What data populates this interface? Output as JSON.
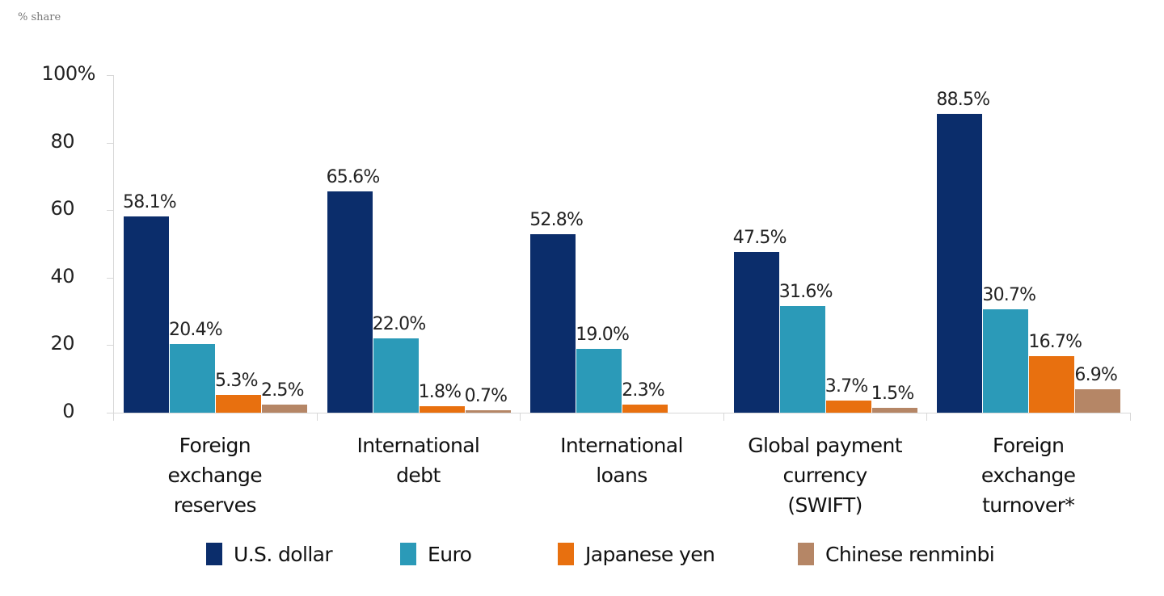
{
  "chart_data": {
    "type": "bar",
    "title": "",
    "unit_label": "% share",
    "xlabel": "",
    "ylabel": "% share",
    "ylim": [
      0,
      100
    ],
    "y_ticks": [
      "0",
      "20",
      "40",
      "60",
      "80",
      "100%"
    ],
    "y_tick_values": [
      0,
      20,
      40,
      60,
      80,
      100
    ],
    "grid": false,
    "legend_position": "bottom",
    "categories": [
      "Foreign exchange reserves",
      "International debt",
      "International loans",
      "Global payment currency (SWIFT)",
      "Foreign exchange turnover*"
    ],
    "category_lines": [
      [
        "Foreign",
        "exchange",
        "reserves"
      ],
      [
        "International",
        "debt"
      ],
      [
        "International",
        "loans"
      ],
      [
        "Global payment",
        "currency",
        "(SWIFT)"
      ],
      [
        "Foreign",
        "exchange",
        "turnover*"
      ]
    ],
    "series": [
      {
        "name": "U.S. dollar",
        "color": "#0b2d6b",
        "values": [
          58.1,
          65.6,
          52.8,
          47.5,
          88.5
        ],
        "labels": [
          "58.1%",
          "65.6%",
          "52.8%",
          "47.5%",
          "88.5%"
        ]
      },
      {
        "name": "Euro",
        "color": "#2b9ab8",
        "values": [
          20.4,
          22.0,
          19.0,
          31.6,
          30.7
        ],
        "labels": [
          "20.4%",
          "22.0%",
          "19.0%",
          "31.6%",
          "30.7%"
        ]
      },
      {
        "name": "Japanese yen",
        "color": "#e8700f",
        "values": [
          5.3,
          1.8,
          2.3,
          3.7,
          16.7
        ],
        "labels": [
          "5.3%",
          "1.8%",
          "2.3%",
          "3.7%",
          "16.7%"
        ]
      },
      {
        "name": "Chinese renminbi",
        "color": "#b58666",
        "values": [
          2.5,
          0.7,
          null,
          1.5,
          6.9
        ],
        "labels": [
          "2.5%",
          "0.7%",
          "",
          "1.5%",
          "6.9%"
        ]
      }
    ]
  }
}
